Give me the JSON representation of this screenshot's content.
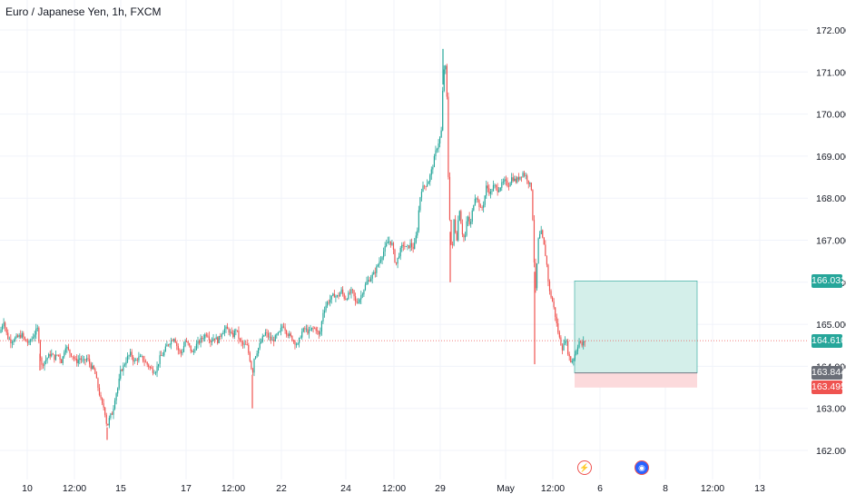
{
  "header": {
    "symbol_title": "Euro / Japanese Yen, 1h, FXCM"
  },
  "colors": {
    "up": "#26a69a",
    "down": "#ef5350",
    "grid": "#f0f3fa",
    "target_zone": "#d4efea",
    "stop_zone": "#fcdadc",
    "current_line": "#ef5350"
  },
  "chart_data": {
    "type": "candlestick",
    "title": "Euro / Japanese Yen, 1h, FXCM",
    "ylim": [
      161.45,
      172.3
    ],
    "y_ticks": [
      "162.000",
      "163.000",
      "164.000",
      "165.000",
      "166.000",
      "167.000",
      "168.000",
      "169.000",
      "170.000",
      "171.000",
      "172.000"
    ],
    "x_ticks": [
      "10",
      "12:00",
      "15",
      "17",
      "12:00",
      "22",
      "24",
      "12:00",
      "29",
      "May",
      "12:00",
      "6",
      "8",
      "12:00",
      "13"
    ],
    "price_path": [
      [
        0,
        164.8
      ],
      [
        4,
        165.1
      ],
      [
        8,
        164.7
      ],
      [
        12,
        164.6
      ],
      [
        16,
        164.65
      ],
      [
        20,
        164.7
      ],
      [
        24,
        164.75
      ],
      [
        28,
        164.6
      ],
      [
        32,
        164.55
      ],
      [
        36,
        164.7
      ],
      [
        40,
        164.85
      ],
      [
        42,
        164.9
      ],
      [
        44,
        164.3
      ],
      [
        46,
        164.0
      ],
      [
        48,
        164.1
      ],
      [
        52,
        164.2
      ],
      [
        56,
        164.3
      ],
      [
        60,
        164.2
      ],
      [
        64,
        164.3
      ],
      [
        68,
        164.1
      ],
      [
        72,
        164.5
      ],
      [
        76,
        164.35
      ],
      [
        80,
        164.25
      ],
      [
        84,
        164.1
      ],
      [
        88,
        164.2
      ],
      [
        92,
        164.1
      ],
      [
        96,
        164.2
      ],
      [
        100,
        164.0
      ],
      [
        104,
        163.9
      ],
      [
        108,
        163.5
      ],
      [
        112,
        163.1
      ],
      [
        115,
        163.0
      ],
      [
        118,
        162.55
      ],
      [
        121,
        162.8
      ],
      [
        124,
        162.9
      ],
      [
        127,
        163.3
      ],
      [
        130,
        163.5
      ],
      [
        133,
        163.9
      ],
      [
        136,
        164.0
      ],
      [
        140,
        164.2
      ],
      [
        144,
        164.3
      ],
      [
        148,
        164.1
      ],
      [
        152,
        164.2
      ],
      [
        156,
        164.2
      ],
      [
        160,
        164.1
      ],
      [
        164,
        164.0
      ],
      [
        168,
        163.9
      ],
      [
        172,
        163.9
      ],
      [
        176,
        164.2
      ],
      [
        180,
        164.3
      ],
      [
        184,
        164.5
      ],
      [
        188,
        164.6
      ],
      [
        192,
        164.7
      ],
      [
        196,
        164.4
      ],
      [
        200,
        164.3
      ],
      [
        204,
        164.6
      ],
      [
        208,
        164.5
      ],
      [
        212,
        164.3
      ],
      [
        216,
        164.5
      ],
      [
        220,
        164.6
      ],
      [
        224,
        164.7
      ],
      [
        228,
        164.8
      ],
      [
        232,
        164.6
      ],
      [
        236,
        164.7
      ],
      [
        240,
        164.6
      ],
      [
        244,
        164.8
      ],
      [
        248,
        164.9
      ],
      [
        252,
        164.85
      ],
      [
        256,
        164.7
      ],
      [
        260,
        164.9
      ],
      [
        264,
        164.6
      ],
      [
        268,
        164.5
      ],
      [
        272,
        164.5
      ],
      [
        276,
        164.1
      ],
      [
        278,
        163.8
      ],
      [
        280,
        164.2
      ],
      [
        284,
        164.4
      ],
      [
        288,
        164.6
      ],
      [
        292,
        164.8
      ],
      [
        296,
        164.7
      ],
      [
        300,
        164.6
      ],
      [
        304,
        164.7
      ],
      [
        308,
        164.8
      ],
      [
        312,
        165.0
      ],
      [
        316,
        164.8
      ],
      [
        320,
        164.7
      ],
      [
        324,
        164.6
      ],
      [
        328,
        164.5
      ],
      [
        332,
        164.8
      ],
      [
        336,
        164.9
      ],
      [
        340,
        164.8
      ],
      [
        344,
        164.9
      ],
      [
        348,
        164.9
      ],
      [
        352,
        164.7
      ],
      [
        356,
        165.3
      ],
      [
        360,
        165.5
      ],
      [
        364,
        165.6
      ],
      [
        368,
        165.7
      ],
      [
        372,
        165.65
      ],
      [
        376,
        165.8
      ],
      [
        380,
        165.6
      ],
      [
        384,
        165.7
      ],
      [
        388,
        165.8
      ],
      [
        392,
        165.5
      ],
      [
        396,
        165.6
      ],
      [
        400,
        165.8
      ],
      [
        404,
        166.0
      ],
      [
        408,
        166.1
      ],
      [
        412,
        166.2
      ],
      [
        416,
        166.4
      ],
      [
        420,
        166.6
      ],
      [
        424,
        166.8
      ],
      [
        428,
        167.0
      ],
      [
        432,
        166.9
      ],
      [
        436,
        166.4
      ],
      [
        440,
        166.7
      ],
      [
        444,
        166.9
      ],
      [
        448,
        166.8
      ],
      [
        452,
        166.9
      ],
      [
        456,
        166.8
      ],
      [
        460,
        167.3
      ],
      [
        462,
        167.9
      ],
      [
        464,
        168.2
      ],
      [
        468,
        168.3
      ],
      [
        472,
        168.4
      ],
      [
        476,
        168.7
      ],
      [
        480,
        169.1
      ],
      [
        484,
        169.4
      ],
      [
        486,
        169.5
      ],
      [
        488,
        170.7
      ],
      [
        490,
        171.3
      ],
      [
        492,
        170.8
      ],
      [
        494,
        168.4
      ],
      [
        496,
        167.2
      ],
      [
        498,
        166.6
      ],
      [
        500,
        167.5
      ],
      [
        503,
        167.0
      ],
      [
        506,
        167.8
      ],
      [
        509,
        167.2
      ],
      [
        512,
        167.0
      ],
      [
        515,
        167.6
      ],
      [
        518,
        167.3
      ],
      [
        521,
        167.8
      ],
      [
        524,
        168.1
      ],
      [
        527,
        167.9
      ],
      [
        530,
        167.7
      ],
      [
        533,
        167.9
      ],
      [
        536,
        168.3
      ],
      [
        540,
        168.1
      ],
      [
        544,
        168.3
      ],
      [
        548,
        168.2
      ],
      [
        552,
        168.3
      ],
      [
        556,
        168.4
      ],
      [
        560,
        168.3
      ],
      [
        564,
        168.5
      ],
      [
        568,
        168.4
      ],
      [
        572,
        168.5
      ],
      [
        576,
        168.6
      ],
      [
        580,
        168.5
      ],
      [
        584,
        168.3
      ],
      [
        586,
        168.2
      ],
      [
        588,
        166.7
      ],
      [
        590,
        165.8
      ],
      [
        593,
        167.0
      ],
      [
        596,
        167.2
      ],
      [
        599,
        166.9
      ],
      [
        602,
        166.5
      ],
      [
        605,
        165.8
      ],
      [
        608,
        165.6
      ],
      [
        611,
        165.3
      ],
      [
        614,
        164.9
      ],
      [
        617,
        164.6
      ],
      [
        620,
        164.4
      ],
      [
        623,
        164.7
      ],
      [
        626,
        164.3
      ],
      [
        629,
        164.1
      ],
      [
        632,
        164.2
      ],
      [
        635,
        164.4
      ],
      [
        638,
        164.6
      ],
      [
        641,
        164.5
      ],
      [
        644,
        164.6
      ]
    ],
    "extreme_wicks": [
      [
        44,
        163.9
      ],
      [
        118,
        162.25
      ],
      [
        278,
        163.0
      ],
      [
        488,
        171.55
      ],
      [
        496,
        166.0
      ],
      [
        589,
        164.05
      ]
    ],
    "position_tool": {
      "x_start": 633,
      "x_end": 768,
      "target": 166.032,
      "entry": 163.844,
      "stop": 163.495
    },
    "current_price": 164.61,
    "price_labels": [
      {
        "text": "166.032",
        "value": 166.032,
        "color": "#26a69a"
      },
      {
        "text": "164.610",
        "value": 164.61,
        "color": "#26a69a"
      },
      {
        "text": "163.844",
        "value": 163.844,
        "color": "#6b6f78"
      },
      {
        "text": "163.495",
        "value": 163.495,
        "color": "#ef5350"
      }
    ]
  },
  "events": [
    {
      "name": "lightning-event-icon",
      "glyph": "⚡"
    },
    {
      "name": "economic-event-icon",
      "glyph": "◉"
    }
  ]
}
